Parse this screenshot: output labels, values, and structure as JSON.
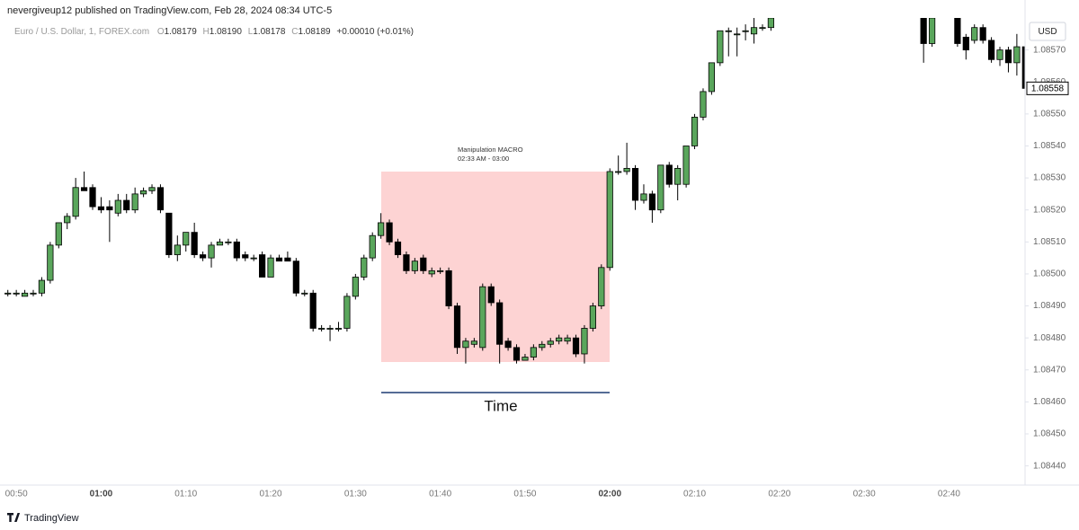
{
  "header": {
    "published": "nevergiveup12 published on TradingView.com, Feb 28, 2024 08:34 UTC-5",
    "symbol": "Euro / U.S. Dollar, 1, FOREX.com",
    "ohlc": [
      {
        "name": "O",
        "value": "1.08179"
      },
      {
        "name": "H",
        "value": "1.08190"
      },
      {
        "name": "L",
        "value": "1.08178"
      },
      {
        "name": "C",
        "value": "1.08189"
      }
    ],
    "change": "+0.00010 (+0.01%)"
  },
  "footer": "TradingView",
  "chart_data": {
    "type": "candlestick",
    "unit": "USD",
    "up_color": "#5aa65c",
    "down_color": "#000000",
    "x": [
      "00:49",
      "00:50",
      "00:51",
      "00:52",
      "00:53",
      "00:54",
      "00:55",
      "00:56",
      "00:57",
      "00:58",
      "00:59",
      "01:00",
      "01:01",
      "01:02",
      "01:03",
      "01:04",
      "01:05",
      "01:06",
      "01:07",
      "01:08",
      "01:09",
      "01:10",
      "01:11",
      "01:12",
      "01:13",
      "01:14",
      "01:15",
      "01:16",
      "01:17",
      "01:18",
      "01:19",
      "01:20",
      "01:21",
      "01:22",
      "01:23",
      "01:24",
      "01:25",
      "01:26",
      "01:27",
      "01:28",
      "01:29",
      "01:30",
      "01:31",
      "01:32",
      "01:33",
      "01:34",
      "01:35",
      "01:36",
      "01:37",
      "01:38",
      "01:39",
      "01:40",
      "01:41",
      "01:42",
      "01:43",
      "01:44",
      "01:45",
      "01:46",
      "01:47",
      "01:48",
      "01:49",
      "01:50",
      "01:51",
      "01:52",
      "01:53",
      "01:54",
      "01:55",
      "01:56",
      "01:57",
      "01:58",
      "01:59",
      "02:00",
      "02:01",
      "02:02",
      "02:03",
      "02:04",
      "02:05",
      "02:06",
      "02:07",
      "02:08",
      "02:09",
      "02:10",
      "02:11",
      "02:12",
      "02:13",
      "02:14",
      "02:15",
      "02:16",
      "02:17",
      "02:18",
      "02:19",
      "02:20",
      "02:21",
      "02:22",
      "02:23",
      "02:24",
      "02:25",
      "02:26",
      "02:27",
      "02:28",
      "02:29",
      "02:30",
      "02:31",
      "02:32",
      "02:33",
      "02:34",
      "02:35",
      "02:36",
      "02:37",
      "02:38",
      "02:39",
      "02:40",
      "02:41",
      "02:42",
      "02:43",
      "02:44",
      "02:45",
      "02:46",
      "02:47",
      "02:48",
      "02:49"
    ],
    "open": [
      1.08494,
      1.08494,
      1.08493,
      1.08494,
      1.08494,
      1.08498,
      1.08509,
      1.08516,
      1.08518,
      1.08527,
      1.08527,
      1.08521,
      1.08521,
      1.08519,
      1.08523,
      1.0852,
      1.08525,
      1.08526,
      1.08527,
      1.08519,
      1.08506,
      1.08509,
      1.08513,
      1.08506,
      1.08505,
      1.08509,
      1.0851,
      1.0851,
      1.08506,
      1.08505,
      1.08506,
      1.08499,
      1.08505,
      1.08505,
      1.08504,
      1.08494,
      1.08494,
      1.08483,
      1.08483,
      1.08483,
      1.08483,
      1.08493,
      1.08499,
      1.08505,
      1.08512,
      1.08516,
      1.0851,
      1.08506,
      1.08501,
      1.08505,
      1.085,
      1.08501,
      1.08501,
      1.0849,
      1.08477,
      1.08478,
      1.08477,
      1.08496,
      1.08491,
      1.08479,
      1.08477,
      1.08473,
      1.08474,
      1.08477,
      1.08478,
      1.08479,
      1.08479,
      1.0848,
      1.08475,
      1.08483,
      1.0849,
      1.08502,
      1.08532,
      1.08532,
      1.08533,
      1.08523,
      1.08525,
      1.0852,
      1.08534,
      1.08528,
      1.08528,
      1.0854,
      1.08549,
      1.08557,
      1.08566,
      1.08576,
      1.08575,
      1.08576,
      1.08575,
      1.08577,
      1.08577,
      null,
      null,
      null,
      null,
      null,
      null,
      null,
      null,
      null,
      null,
      null,
      null,
      null,
      null,
      null,
      null,
      null,
      1.0858,
      1.08572,
      null,
      null,
      1.0858,
      1.08574,
      1.08573,
      1.08577,
      1.08573,
      1.08567,
      1.0857,
      1.08566,
      1.08571
    ],
    "high": [
      1.08495,
      1.08495,
      1.08495,
      1.08495,
      1.08499,
      1.0851,
      1.08516,
      1.08519,
      1.0853,
      1.08532,
      1.08528,
      1.08524,
      1.08523,
      1.08525,
      1.08525,
      1.08527,
      1.08527,
      1.08528,
      1.08528,
      1.08519,
      1.08512,
      1.08513,
      1.08516,
      1.08507,
      1.0851,
      1.08511,
      1.08511,
      1.08511,
      1.08507,
      1.08506,
      1.08507,
      1.08506,
      1.08506,
      1.08507,
      1.08505,
      1.08495,
      1.08495,
      1.08484,
      1.08484,
      1.08485,
      1.08494,
      1.085,
      1.08506,
      1.08513,
      1.08519,
      1.08517,
      1.08511,
      1.08507,
      1.08505,
      1.08506,
      1.08502,
      1.08502,
      1.08502,
      1.08491,
      1.0848,
      1.0848,
      1.08497,
      1.08497,
      1.08492,
      1.0848,
      1.08478,
      1.08475,
      1.08478,
      1.08479,
      1.0848,
      1.08481,
      1.08481,
      1.08481,
      1.08484,
      1.08491,
      1.08503,
      1.08533,
      1.08537,
      1.08541,
      1.08534,
      1.08528,
      1.08526,
      1.08534,
      1.08535,
      1.08534,
      1.0854,
      1.0855,
      1.08558,
      1.08566,
      1.08576,
      1.08577,
      1.08577,
      1.08578,
      1.0858,
      1.08578,
      1.0858,
      null,
      null,
      null,
      null,
      null,
      null,
      null,
      null,
      null,
      null,
      null,
      null,
      null,
      null,
      null,
      null,
      null,
      1.0858,
      1.0858,
      null,
      null,
      1.0858,
      1.08575,
      1.08578,
      1.08578,
      1.08574,
      1.08571,
      1.08571,
      1.08575,
      1.08571
    ],
    "low": [
      1.08493,
      1.08493,
      1.08493,
      1.08493,
      1.08493,
      1.08497,
      1.08508,
      1.08514,
      1.08517,
      1.08526,
      1.0852,
      1.08519,
      1.0851,
      1.08518,
      1.08519,
      1.08519,
      1.08524,
      1.08525,
      1.08519,
      1.08505,
      1.08504,
      1.08507,
      1.08505,
      1.08504,
      1.08502,
      1.08509,
      1.08509,
      1.08504,
      1.08504,
      1.08504,
      1.08499,
      1.08499,
      1.08504,
      1.08504,
      1.08493,
      1.08493,
      1.08482,
      1.08482,
      1.08479,
      1.08482,
      1.08482,
      1.08492,
      1.08498,
      1.08504,
      1.08511,
      1.08509,
      1.08505,
      1.085,
      1.085,
      1.085,
      1.08499,
      1.085,
      1.08489,
      1.08475,
      1.08472,
      1.08477,
      1.08476,
      1.0849,
      1.08472,
      1.08476,
      1.08472,
      1.08473,
      1.08473,
      1.08476,
      1.08477,
      1.08478,
      1.08478,
      1.08474,
      1.08472,
      1.08482,
      1.08489,
      1.08501,
      1.08531,
      1.08531,
      1.0852,
      1.08522,
      1.08516,
      1.08519,
      1.08527,
      1.08523,
      1.08527,
      1.08539,
      1.08548,
      1.08556,
      1.08565,
      1.08568,
      1.08568,
      1.08573,
      1.08572,
      1.08576,
      1.08576,
      null,
      null,
      null,
      null,
      null,
      null,
      null,
      null,
      null,
      null,
      null,
      null,
      null,
      null,
      null,
      null,
      null,
      1.08566,
      1.08571,
      null,
      null,
      1.08571,
      1.08567,
      1.08572,
      1.08572,
      1.08566,
      1.08565,
      1.08563,
      1.08562,
      1.08557
    ],
    "close": [
      1.08494,
      1.08494,
      1.08494,
      1.08494,
      1.08498,
      1.08509,
      1.08516,
      1.08518,
      1.08527,
      1.08526,
      1.08521,
      1.0852,
      1.0852,
      1.08523,
      1.0852,
      1.08525,
      1.08526,
      1.08527,
      1.0852,
      1.08506,
      1.08509,
      1.08513,
      1.08506,
      1.08505,
      1.08509,
      1.0851,
      1.0851,
      1.08505,
      1.08505,
      1.08505,
      1.08499,
      1.08505,
      1.08504,
      1.08504,
      1.08494,
      1.08494,
      1.08483,
      1.08483,
      1.08483,
      1.08483,
      1.08493,
      1.08499,
      1.08505,
      1.08512,
      1.08516,
      1.0851,
      1.08506,
      1.08501,
      1.08504,
      1.08501,
      1.08501,
      1.08501,
      1.0849,
      1.08477,
      1.08479,
      1.08479,
      1.08496,
      1.08491,
      1.08478,
      1.08477,
      1.08473,
      1.08474,
      1.08477,
      1.08478,
      1.08479,
      1.0848,
      1.0848,
      1.08475,
      1.08483,
      1.0849,
      1.08502,
      1.08532,
      1.08532,
      1.08533,
      1.08523,
      1.08525,
      1.0852,
      1.08534,
      1.08528,
      1.08533,
      1.0854,
      1.08549,
      1.08557,
      1.08566,
      1.08576,
      1.08576,
      1.08575,
      1.08576,
      1.08577,
      1.08577,
      1.0858,
      null,
      null,
      null,
      null,
      null,
      null,
      null,
      null,
      null,
      null,
      null,
      null,
      null,
      null,
      null,
      null,
      null,
      1.08572,
      1.0858,
      null,
      null,
      1.08572,
      1.0857,
      1.08577,
      1.08573,
      1.08567,
      1.0857,
      1.08566,
      1.08571,
      1.08558
    ],
    "ylim": [
      1.08434,
      1.0858
    ],
    "yticks": [
      {
        "value": 1.0844,
        "label": "1.08440"
      },
      {
        "value": 1.0845,
        "label": "1.08450"
      },
      {
        "value": 1.0846,
        "label": "1.08460"
      },
      {
        "value": 1.0847,
        "label": "1.08470"
      },
      {
        "value": 1.0848,
        "label": "1.08480"
      },
      {
        "value": 1.0849,
        "label": "1.08490"
      },
      {
        "value": 1.085,
        "label": "1.08500"
      },
      {
        "value": 1.0851,
        "label": "1.08510"
      },
      {
        "value": 1.0852,
        "label": "1.08520"
      },
      {
        "value": 1.0853,
        "label": "1.08530"
      },
      {
        "value": 1.0854,
        "label": "1.08540"
      },
      {
        "value": 1.0855,
        "label": "1.08550"
      },
      {
        "value": 1.0856,
        "label": "1.08560"
      },
      {
        "value": 1.0857,
        "label": "1.08570"
      }
    ],
    "xticks": [
      "00:50",
      "01:00",
      "01:10",
      "01:20",
      "01:30",
      "01:40",
      "01:50",
      "02:00",
      "02:10",
      "02:20",
      "02:30",
      "02:40"
    ],
    "last_price": {
      "value": 1.08558,
      "label": "1.08558"
    },
    "annotation": {
      "lines": [
        "Manipulation MACRO",
        "02:33 AM - 03:00"
      ],
      "label": "Time"
    }
  }
}
